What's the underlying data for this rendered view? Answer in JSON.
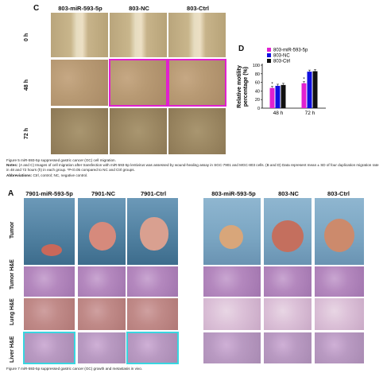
{
  "figure5": {
    "panel_c": "C",
    "panel_d": "D",
    "columns": [
      "803-miR-593-5p",
      "803-NC",
      "803-Ctrl"
    ],
    "rows": [
      "0 h",
      "48 h",
      "72 h"
    ],
    "caption_title": "Figure 5 miR-593-5p suppressed gastric cancer (GC) cell migration.",
    "caption_notes_label": "Notes:",
    "caption_notes": "(A and C) Images of cell migration after transfection with miR-593-5p lentivirus was assessed by wound-healing assay in SGC-7901 and MGC-803 cells. (B and D) Data represent mean ± SD of four duplication migration rate in 48 and 72 hours (h) in each group. *P<0.05 compared to NC and Ctrl groups.",
    "caption_abbr_label": "Abbreviations:",
    "caption_abbr": "Ctrl, control; NC, negative control."
  },
  "chart_data": {
    "type": "bar",
    "categories": [
      "48 h",
      "72 h"
    ],
    "series": [
      {
        "name": "803-miR-593-5p",
        "color": "#e020d0",
        "values": [
          47,
          58
        ]
      },
      {
        "name": "803-NC",
        "color": "#1010e0",
        "values": [
          52,
          85
        ]
      },
      {
        "name": "803-Ctrl",
        "color": "#111111",
        "values": [
          54,
          86
        ]
      }
    ],
    "ylabel_line1": "Relative motility",
    "ylabel_line2": "percentage (%)",
    "ylim": [
      0,
      100
    ],
    "yticks": [
      "0",
      "20",
      "40",
      "60",
      "80",
      "100"
    ],
    "annotation": "*",
    "legend_position": "top"
  },
  "figure7": {
    "panel_a": "A",
    "columns_left": [
      "7901-miR-593-5p",
      "7901-NC",
      "7901-Ctrl"
    ],
    "columns_right": [
      "803-miR-593-5p",
      "803-NC",
      "803-Ctrl"
    ],
    "rows": [
      "Tumor",
      "Tumor H&E",
      "Lung H&E",
      "Liver H&E"
    ],
    "caption_title": "Figure 7 miR-593-5p suppressed gastric cancer (GC) growth and metastasis in vivo."
  }
}
